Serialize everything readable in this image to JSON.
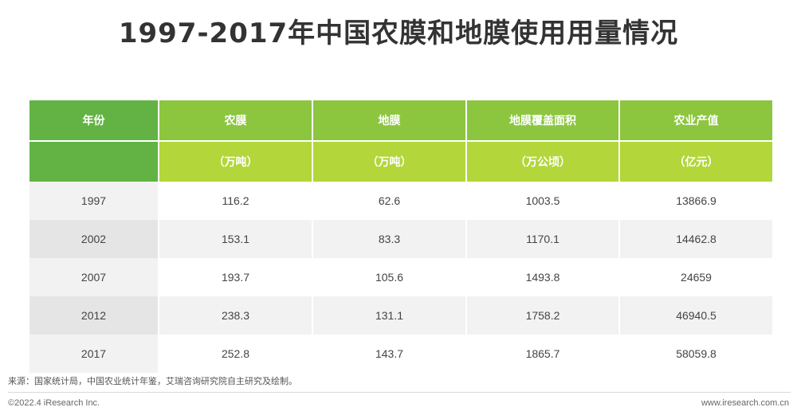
{
  "title": "1997-2017年中国农膜和地膜使用用量情况",
  "chart_data": {
    "type": "table",
    "columns": [
      {
        "header": "年份",
        "unit": ""
      },
      {
        "header": "农膜",
        "unit": "（万吨）"
      },
      {
        "header": "地膜",
        "unit": "（万吨）"
      },
      {
        "header": "地膜覆盖面积",
        "unit": "（万公顷）"
      },
      {
        "header": "农业产值",
        "unit": "（亿元）"
      }
    ],
    "rows": [
      [
        "1997",
        "116.2",
        "62.6",
        "1003.5",
        "13866.9"
      ],
      [
        "2002",
        "153.1",
        "83.3",
        "1170.1",
        "14462.8"
      ],
      [
        "2007",
        "193.7",
        "105.6",
        "1493.8",
        "24659"
      ],
      [
        "2012",
        "238.3",
        "131.1",
        "1758.2",
        "46940.5"
      ],
      [
        "2017",
        "252.8",
        "143.7",
        "1865.7",
        "58059.8"
      ]
    ]
  },
  "source": "来源：国家统计局，中国农业统计年鉴，艾瑞咨询研究院自主研究及绘制。",
  "footer": {
    "copyright": "©2022.4 iResearch Inc.",
    "site": "www.iresearch.com.cn"
  },
  "colors": {
    "header_dark_green": "#62b344",
    "header_green": "#8cc63f",
    "header_lime": "#b3d63a",
    "row_gray": "#f2f2f2"
  }
}
